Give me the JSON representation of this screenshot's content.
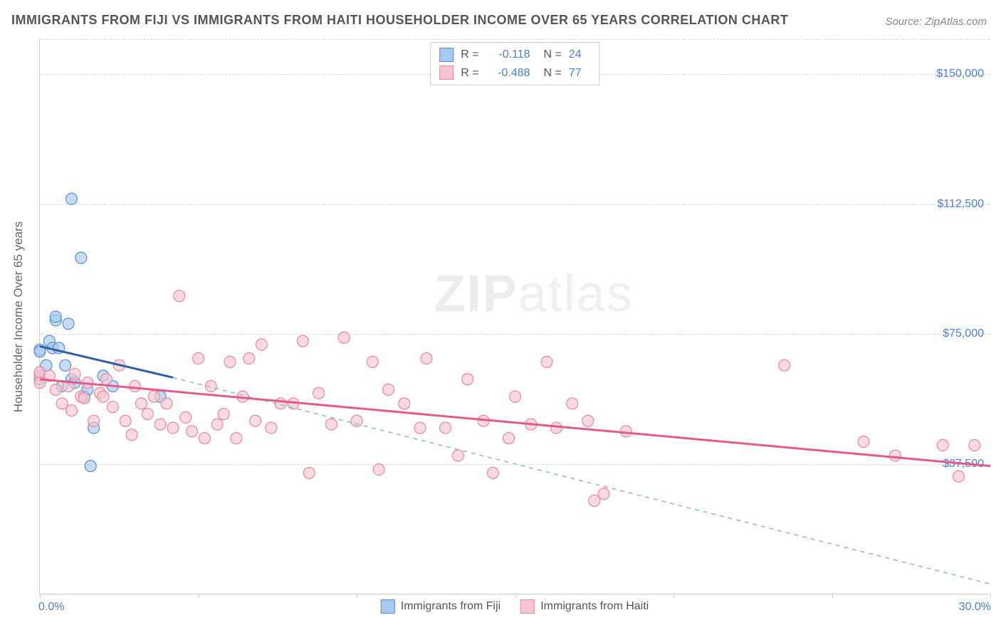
{
  "title": "IMMIGRANTS FROM FIJI VS IMMIGRANTS FROM HAITI HOUSEHOLDER INCOME OVER 65 YEARS CORRELATION CHART",
  "source": "Source: ZipAtlas.com",
  "watermark_bold": "ZIP",
  "watermark_rest": "atlas",
  "chart": {
    "type": "scatter",
    "y_axis_title": "Householder Income Over 65 years",
    "xlim": [
      0,
      30
    ],
    "ylim": [
      0,
      160000
    ],
    "x_tick_positions": [
      0,
      5,
      10,
      15,
      20,
      25,
      30
    ],
    "x_tick_labels_shown": {
      "0": "0.0%",
      "30": "30.0%"
    },
    "y_tick_positions": [
      37500,
      75000,
      112500,
      150000
    ],
    "y_tick_labels": [
      "$37,500",
      "$75,000",
      "$112,500",
      "$150,000"
    ],
    "background_color": "#ffffff",
    "grid_color": "#d8d8de",
    "axis_color": "#d0d0d8",
    "tick_label_color": "#4a7fd6",
    "series": [
      {
        "name": "Immigrants from Fiji",
        "marker_fill": "#a8c8ee",
        "marker_stroke": "#5a8fd6",
        "marker_radius": 8,
        "line_solid_color": "#2f5fa8",
        "line_dashed_color": "#8fb3e2",
        "R": "-0.118",
        "N": "24",
        "trend_solid": {
          "x1": 0.0,
          "y1": 71500,
          "x2": 4.2,
          "y2": 62500
        },
        "trend_dashed": {
          "x1": 4.2,
          "y1": 62500,
          "x2": 30.0,
          "y2": 3000
        },
        "points": [
          [
            0.0,
            70500
          ],
          [
            0.0,
            70000
          ],
          [
            0.0,
            63000
          ],
          [
            0.0,
            62000
          ],
          [
            0.2,
            66000
          ],
          [
            0.3,
            73000
          ],
          [
            0.4,
            71000
          ],
          [
            0.5,
            79000
          ],
          [
            0.5,
            80000
          ],
          [
            0.6,
            71000
          ],
          [
            0.7,
            60000
          ],
          [
            0.8,
            66000
          ],
          [
            0.9,
            78000
          ],
          [
            1.0,
            114000
          ],
          [
            1.0,
            62000
          ],
          [
            1.1,
            61000
          ],
          [
            1.3,
            97000
          ],
          [
            1.4,
            57000
          ],
          [
            1.5,
            59000
          ],
          [
            1.6,
            37000
          ],
          [
            1.7,
            48000
          ],
          [
            2.0,
            63000
          ],
          [
            2.3,
            60000
          ],
          [
            3.8,
            57000
          ]
        ]
      },
      {
        "name": "Immigrants from Haiti",
        "marker_fill": "#f7c6d0",
        "marker_stroke": "#e68aa0",
        "marker_radius": 8,
        "line_solid_color": "#e55a8a",
        "line_dashed_color": "#f0a8bd",
        "R": "-0.488",
        "N": "77",
        "trend_solid": {
          "x1": 0.0,
          "y1": 62000,
          "x2": 30.0,
          "y2": 37000
        },
        "trend_dashed": null,
        "points": [
          [
            0.0,
            63000
          ],
          [
            0.0,
            64000
          ],
          [
            0.0,
            61000
          ],
          [
            0.3,
            63000
          ],
          [
            0.5,
            59000
          ],
          [
            0.7,
            55000
          ],
          [
            0.9,
            60000
          ],
          [
            1.0,
            53000
          ],
          [
            1.1,
            63500
          ],
          [
            1.3,
            57000
          ],
          [
            1.4,
            56500
          ],
          [
            1.5,
            61000
          ],
          [
            1.7,
            50000
          ],
          [
            1.9,
            58000
          ],
          [
            2.0,
            57000
          ],
          [
            2.1,
            62000
          ],
          [
            2.3,
            54000
          ],
          [
            2.5,
            66000
          ],
          [
            2.7,
            50000
          ],
          [
            2.9,
            46000
          ],
          [
            3.0,
            60000
          ],
          [
            3.2,
            55000
          ],
          [
            3.4,
            52000
          ],
          [
            3.6,
            57000
          ],
          [
            3.8,
            49000
          ],
          [
            4.0,
            55000
          ],
          [
            4.2,
            48000
          ],
          [
            4.4,
            86000
          ],
          [
            4.6,
            51000
          ],
          [
            4.8,
            47000
          ],
          [
            5.0,
            68000
          ],
          [
            5.2,
            45000
          ],
          [
            5.4,
            60000
          ],
          [
            5.6,
            49000
          ],
          [
            5.8,
            52000
          ],
          [
            6.0,
            67000
          ],
          [
            6.2,
            45000
          ],
          [
            6.4,
            57000
          ],
          [
            6.6,
            68000
          ],
          [
            6.8,
            50000
          ],
          [
            7.0,
            72000
          ],
          [
            7.3,
            48000
          ],
          [
            7.6,
            55000
          ],
          [
            8.0,
            55000
          ],
          [
            8.3,
            73000
          ],
          [
            8.5,
            35000
          ],
          [
            8.8,
            58000
          ],
          [
            9.2,
            49000
          ],
          [
            9.6,
            74000
          ],
          [
            10.0,
            50000
          ],
          [
            10.5,
            67000
          ],
          [
            10.7,
            36000
          ],
          [
            11.0,
            59000
          ],
          [
            11.5,
            55000
          ],
          [
            12.0,
            48000
          ],
          [
            12.2,
            68000
          ],
          [
            12.8,
            48000
          ],
          [
            13.2,
            40000
          ],
          [
            13.5,
            62000
          ],
          [
            14.0,
            50000
          ],
          [
            14.3,
            35000
          ],
          [
            14.8,
            45000
          ],
          [
            15.0,
            57000
          ],
          [
            15.5,
            49000
          ],
          [
            16.0,
            67000
          ],
          [
            16.3,
            48000
          ],
          [
            16.8,
            55000
          ],
          [
            17.3,
            50000
          ],
          [
            17.5,
            27000
          ],
          [
            17.8,
            29000
          ],
          [
            18.5,
            47000
          ],
          [
            23.5,
            66000
          ],
          [
            26.0,
            44000
          ],
          [
            27.0,
            40000
          ],
          [
            28.5,
            43000
          ],
          [
            29.0,
            34000
          ],
          [
            29.5,
            43000
          ]
        ]
      }
    ],
    "legend_bottom": [
      {
        "label": "Immigrants from Fiji",
        "fill": "#a8c8ee",
        "stroke": "#5a8fd6"
      },
      {
        "label": "Immigrants from Haiti",
        "fill": "#f7c6d0",
        "stroke": "#e68aa0"
      }
    ]
  }
}
